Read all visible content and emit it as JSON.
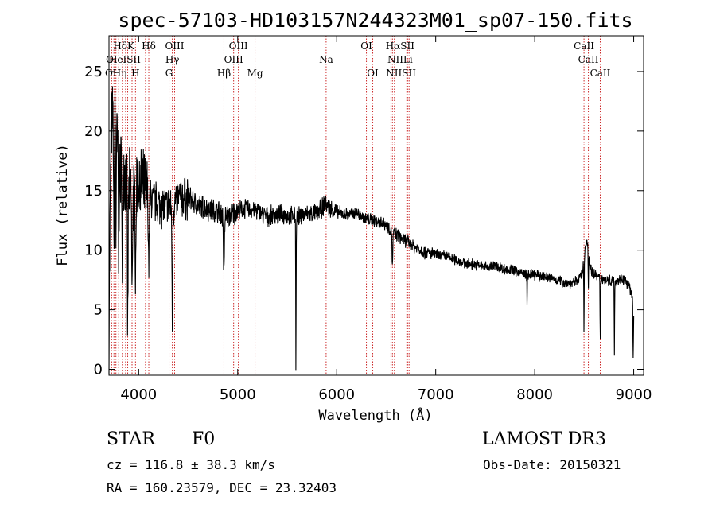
{
  "chart_data": {
    "type": "line",
    "title": "spec-57103-HD103157N244323M01_sp07-150.fits",
    "xlabel": "Wavelength (Å)",
    "ylabel": "Flux (relative)",
    "xlim": [
      3700,
      9100
    ],
    "ylim": [
      -0.5,
      28
    ],
    "xticks": [
      4000,
      5000,
      6000,
      7000,
      8000,
      9000
    ],
    "yticks": [
      0,
      5,
      10,
      15,
      20,
      25
    ],
    "series": [
      {
        "name": "flux",
        "anchors_x": [
          3700,
          3720,
          3760,
          3800,
          3850,
          3900,
          3950,
          4000,
          4100,
          4200,
          4300,
          4340,
          4400,
          4500,
          4600,
          4700,
          4800,
          4861,
          4900,
          5000,
          5100,
          5200,
          5300,
          5400,
          5500,
          5600,
          5700,
          5800,
          5890,
          5950,
          6000,
          6100,
          6200,
          6300,
          6400,
          6500,
          6563,
          6600,
          6700,
          6800,
          6900,
          7000,
          7100,
          7200,
          7300,
          7400,
          7500,
          7600,
          7700,
          7800,
          7900,
          8000,
          8100,
          8200,
          8300,
          8400,
          8480,
          8520,
          8542,
          8560,
          8600,
          8662,
          8700,
          8800,
          8900,
          8950,
          9000
        ],
        "anchors_y": [
          3,
          20,
          22,
          16.5,
          17,
          15,
          14.5,
          15.5,
          14.5,
          13.8,
          13.6,
          13.5,
          14.3,
          14.4,
          13.7,
          13.5,
          13.2,
          13,
          12.8,
          13.3,
          13.5,
          13.3,
          12.8,
          13,
          12.9,
          12.8,
          13,
          13.1,
          13.9,
          13.4,
          13.2,
          13,
          13.1,
          12.6,
          12.5,
          12.2,
          11.5,
          11.3,
          10.8,
          10.2,
          9.8,
          9.6,
          9.5,
          9.2,
          8.9,
          8.8,
          8.6,
          8.7,
          8.4,
          8.3,
          8.0,
          7.9,
          7.8,
          7.6,
          7.3,
          7.2,
          8.0,
          10.8,
          10.3,
          8.5,
          8.0,
          7.6,
          7.6,
          7.4,
          7.6,
          7.0,
          5.8
        ],
        "dips": [
          {
            "x": 3750,
            "depth": 12,
            "width": 5
          },
          {
            "x": 3770,
            "depth": 10,
            "width": 4
          },
          {
            "x": 3798,
            "depth": 8,
            "width": 4
          },
          {
            "x": 3835,
            "depth": 11,
            "width": 4
          },
          {
            "x": 3889,
            "depth": 12,
            "width": 5
          },
          {
            "x": 3933,
            "depth": 9,
            "width": 5
          },
          {
            "x": 3968,
            "depth": 7,
            "width": 5
          },
          {
            "x": 4102,
            "depth": 6,
            "width": 6
          },
          {
            "x": 4340,
            "depth": 10,
            "width": 5
          },
          {
            "x": 4861,
            "depth": 5,
            "width": 7
          },
          {
            "x": 5588,
            "depth": 13,
            "width": 3
          },
          {
            "x": 6563,
            "depth": 3,
            "width": 5
          },
          {
            "x": 7923,
            "depth": 2.5,
            "width": 3
          },
          {
            "x": 8498,
            "depth": 6.5,
            "width": 3
          },
          {
            "x": 8542,
            "depth": 3.5,
            "width": 3
          },
          {
            "x": 8662,
            "depth": 5,
            "width": 3
          },
          {
            "x": 8805,
            "depth": 6,
            "width": 3
          },
          {
            "x": 8995,
            "depth": 5,
            "width": 4
          }
        ]
      }
    ],
    "spectral_lines": [
      {
        "label": "HδK",
        "x": 3850,
        "row": 1
      },
      {
        "label": "Hδ",
        "x": 4102,
        "row": 1
      },
      {
        "label": "OIII",
        "x": 4363,
        "row": 1
      },
      {
        "label": "OIII",
        "x": 5007,
        "row": 1
      },
      {
        "label": "OI",
        "x": 6300,
        "row": 1
      },
      {
        "label": "HαSII",
        "x": 6640,
        "row": 1
      },
      {
        "label": "CaII",
        "x": 8498,
        "row": 1
      },
      {
        "label": "OI",
        "x": 3727,
        "row": 2
      },
      {
        "label": "HeISII",
        "x": 3860,
        "row": 2
      },
      {
        "label": "Hγ",
        "x": 4340,
        "row": 2
      },
      {
        "label": "OIII",
        "x": 4959,
        "row": 2
      },
      {
        "label": "Na",
        "x": 5893,
        "row": 2
      },
      {
        "label": "NIILi",
        "x": 6640,
        "row": 2
      },
      {
        "label": "CaII",
        "x": 8542,
        "row": 2
      },
      {
        "label": "OHη",
        "x": 3770,
        "row": 3
      },
      {
        "label": "H",
        "x": 3968,
        "row": 3
      },
      {
        "label": "G",
        "x": 4307,
        "row": 3
      },
      {
        "label": "Hβ",
        "x": 4861,
        "row": 3
      },
      {
        "label": "Mg",
        "x": 5175,
        "row": 3
      },
      {
        "label": "OI",
        "x": 6364,
        "row": 3
      },
      {
        "label": "NIISII",
        "x": 6650,
        "row": 3
      },
      {
        "label": "CaII",
        "x": 8662,
        "row": 3
      }
    ],
    "line_markers_x": [
      3727,
      3750,
      3770,
      3798,
      3835,
      3868,
      3889,
      3933,
      3968,
      4069,
      4102,
      4307,
      4340,
      4363,
      4861,
      4959,
      5007,
      5175,
      5893,
      6300,
      6364,
      6548,
      6563,
      6583,
      6708,
      6716,
      6731,
      8498,
      8542,
      8662
    ],
    "line_color": "#cc2a2a"
  },
  "info": {
    "object_class": "STAR",
    "subclass": "F0",
    "survey": "LAMOST DR3",
    "cz": "cz = 116.8 ± 38.3 km/s",
    "obs_date": "Obs-Date: 20150321",
    "coords": "RA = 160.23579, DEC =  23.32403"
  }
}
